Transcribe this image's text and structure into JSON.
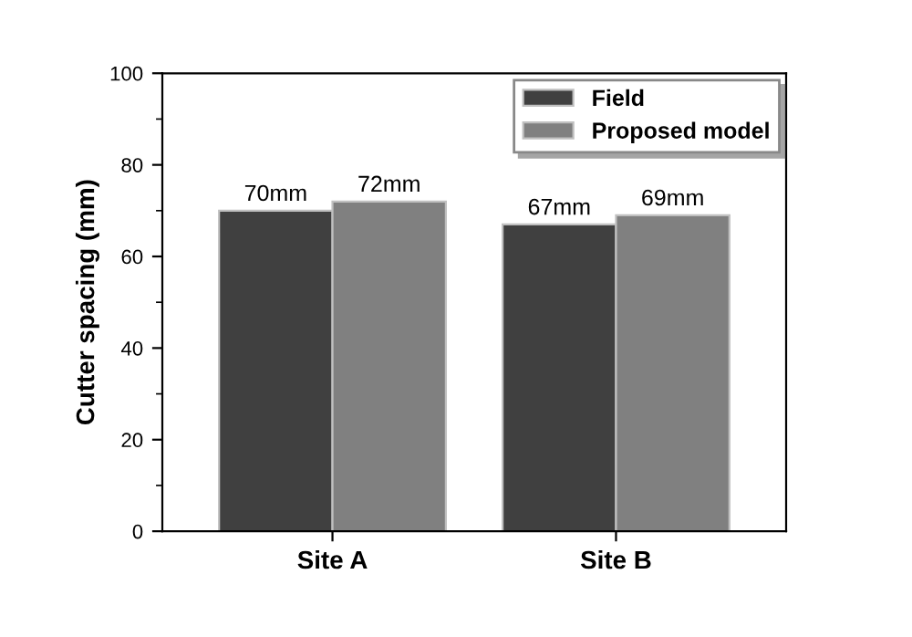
{
  "chart_data": {
    "type": "bar",
    "ylabel": "Cutter spacing (mm)",
    "categories": [
      "Site A",
      "Site B"
    ],
    "series": [
      {
        "name": "Field",
        "color": "#404040",
        "values": [
          70,
          67
        ],
        "value_labels": [
          "70mm",
          "67mm"
        ]
      },
      {
        "name": "Proposed model",
        "color": "#808080",
        "values": [
          72,
          69
        ],
        "value_labels": [
          "72mm",
          "69mm"
        ]
      }
    ],
    "ylim": [
      0,
      100
    ],
    "yticks": [
      0,
      20,
      40,
      60,
      80,
      100
    ],
    "grid": false,
    "legend": "top right"
  }
}
